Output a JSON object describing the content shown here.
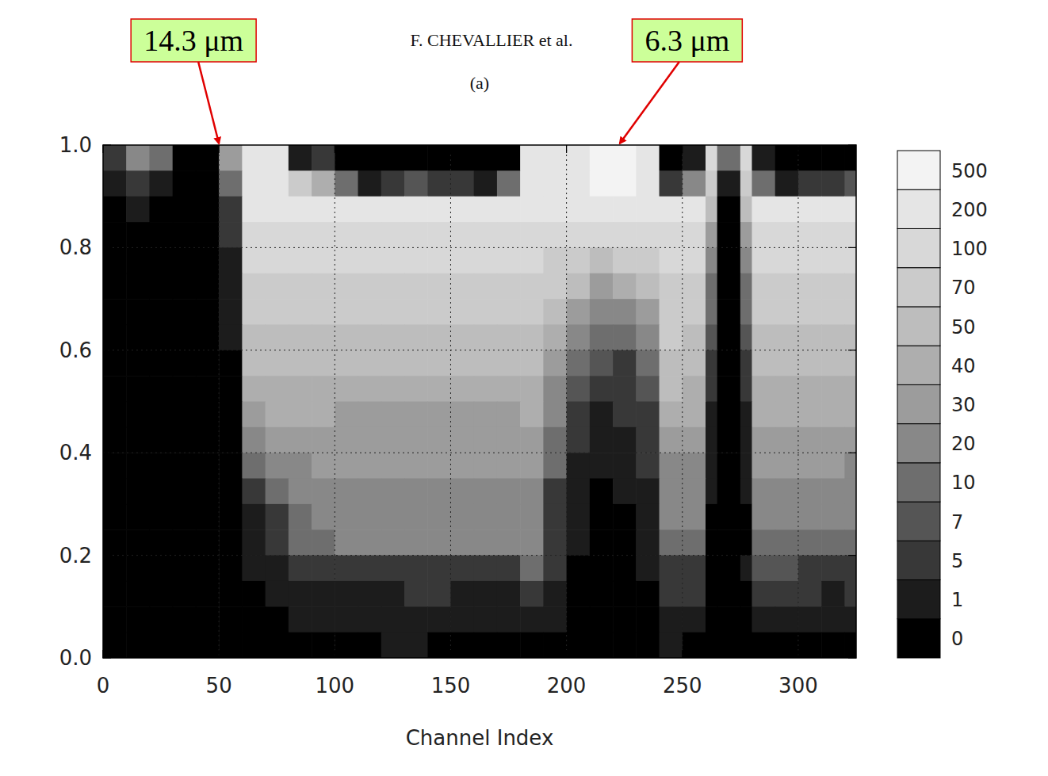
{
  "chart_data": {
    "type": "heatmap",
    "header": "F. CHEVALLIER et al.",
    "title": "(a)",
    "x_label": "Channel Index",
    "annotations": [
      {
        "text": "14.3 μm",
        "x": 50,
        "y": 1.0
      },
      {
        "text": "6.3 μm",
        "x": 223,
        "y": 1.0
      }
    ],
    "xlim": [
      0,
      325
    ],
    "xticks": [
      0,
      50,
      100,
      150,
      200,
      250,
      300
    ],
    "ylim": [
      0,
      1.0
    ],
    "yticks": [
      {
        "value": 0,
        "label": "0.0"
      },
      0.2,
      0.4,
      0.6,
      0.8,
      {
        "value": 1.0,
        "label": "1.0"
      }
    ],
    "grid": true,
    "x_edges": [
      0,
      10,
      20,
      30,
      40,
      50,
      60,
      70,
      80,
      90,
      100,
      110,
      120,
      130,
      140,
      150,
      160,
      170,
      180,
      190,
      200,
      210,
      220,
      230,
      240,
      250,
      260,
      265,
      275,
      280,
      290,
      300,
      310,
      320,
      325
    ],
    "y_edges": [
      1.0,
      0.95,
      0.9,
      0.85,
      0.8,
      0.75,
      0.7,
      0.65,
      0.6,
      0.55,
      0.5,
      0.45,
      0.4,
      0.35,
      0.3,
      0.25,
      0.2,
      0.15,
      0.1,
      0.05,
      0
    ],
    "cells": [
      [
        5,
        20,
        10,
        0,
        0,
        30,
        200,
        200,
        1,
        5,
        0,
        0,
        0,
        0,
        0,
        0,
        0,
        0,
        200,
        200,
        200,
        500,
        500,
        200,
        0,
        1,
        100,
        10,
        100,
        1,
        0,
        0,
        0,
        0
      ],
      [
        1,
        5,
        1,
        0,
        0,
        10,
        200,
        200,
        70,
        40,
        10,
        1,
        5,
        7,
        5,
        5,
        1,
        10,
        200,
        200,
        200,
        500,
        500,
        200,
        5,
        20,
        70,
        1,
        70,
        10,
        1,
        5,
        5,
        7
      ],
      [
        0,
        1,
        0,
        0,
        0,
        5,
        200,
        200,
        200,
        200,
        200,
        200,
        200,
        200,
        200,
        200,
        200,
        200,
        200,
        200,
        200,
        200,
        200,
        200,
        200,
        200,
        50,
        0,
        50,
        200,
        200,
        200,
        200,
        200
      ],
      [
        0,
        0,
        0,
        0,
        0,
        5,
        100,
        100,
        100,
        100,
        100,
        100,
        100,
        100,
        100,
        100,
        100,
        100,
        100,
        100,
        100,
        100,
        100,
        100,
        100,
        100,
        30,
        0,
        30,
        100,
        100,
        100,
        100,
        100
      ],
      [
        0,
        0,
        0,
        0,
        0,
        1,
        100,
        100,
        100,
        100,
        100,
        100,
        100,
        100,
        100,
        100,
        100,
        100,
        100,
        70,
        70,
        50,
        70,
        70,
        100,
        100,
        20,
        0,
        20,
        100,
        100,
        100,
        100,
        100
      ],
      [
        0,
        0,
        0,
        0,
        0,
        1,
        70,
        70,
        70,
        70,
        70,
        70,
        70,
        70,
        70,
        70,
        70,
        70,
        70,
        70,
        50,
        30,
        40,
        50,
        70,
        70,
        10,
        0,
        10,
        70,
        70,
        70,
        70,
        70
      ],
      [
        0,
        0,
        0,
        0,
        0,
        1,
        70,
        70,
        70,
        70,
        70,
        70,
        70,
        70,
        70,
        70,
        70,
        70,
        70,
        50,
        30,
        20,
        20,
        30,
        70,
        70,
        10,
        0,
        10,
        70,
        70,
        70,
        70,
        70
      ],
      [
        0,
        0,
        0,
        0,
        0,
        1,
        50,
        50,
        50,
        50,
        50,
        50,
        50,
        50,
        50,
        50,
        50,
        50,
        50,
        40,
        20,
        10,
        10,
        20,
        70,
        50,
        7,
        0,
        7,
        50,
        50,
        50,
        50,
        50
      ],
      [
        0,
        0,
        0,
        0,
        0,
        0,
        50,
        50,
        50,
        50,
        50,
        50,
        50,
        50,
        50,
        50,
        50,
        50,
        50,
        30,
        10,
        7,
        5,
        10,
        50,
        50,
        5,
        0,
        5,
        50,
        50,
        50,
        50,
        50
      ],
      [
        0,
        0,
        0,
        0,
        0,
        0,
        40,
        40,
        40,
        40,
        40,
        40,
        40,
        40,
        40,
        40,
        40,
        40,
        40,
        20,
        7,
        5,
        5,
        7,
        50,
        40,
        5,
        0,
        5,
        40,
        40,
        40,
        40,
        40
      ],
      [
        0,
        0,
        0,
        0,
        0,
        0,
        30,
        40,
        40,
        40,
        30,
        30,
        30,
        30,
        30,
        30,
        30,
        30,
        40,
        20,
        5,
        1,
        5,
        5,
        40,
        40,
        1,
        0,
        1,
        40,
        40,
        40,
        40,
        40
      ],
      [
        0,
        0,
        0,
        0,
        0,
        0,
        20,
        30,
        30,
        30,
        30,
        30,
        30,
        30,
        30,
        30,
        30,
        30,
        30,
        10,
        5,
        1,
        1,
        5,
        30,
        30,
        1,
        0,
        1,
        30,
        30,
        30,
        30,
        30
      ],
      [
        0,
        0,
        0,
        0,
        0,
        0,
        10,
        20,
        20,
        30,
        30,
        30,
        30,
        30,
        30,
        30,
        30,
        30,
        30,
        10,
        1,
        1,
        1,
        5,
        20,
        20,
        1,
        0,
        1,
        30,
        30,
        30,
        30,
        20
      ],
      [
        0,
        0,
        0,
        0,
        0,
        0,
        5,
        10,
        20,
        20,
        20,
        20,
        20,
        20,
        20,
        20,
        20,
        20,
        20,
        5,
        1,
        0,
        1,
        1,
        20,
        20,
        1,
        0,
        1,
        20,
        20,
        20,
        20,
        20
      ],
      [
        0,
        0,
        0,
        0,
        0,
        0,
        1,
        5,
        10,
        20,
        20,
        20,
        20,
        20,
        20,
        20,
        20,
        20,
        20,
        5,
        1,
        0,
        0,
        1,
        20,
        20,
        0,
        0,
        0,
        20,
        20,
        20,
        20,
        20
      ],
      [
        0,
        0,
        0,
        0,
        0,
        0,
        1,
        5,
        10,
        10,
        20,
        20,
        20,
        20,
        20,
        20,
        20,
        20,
        20,
        5,
        1,
        0,
        0,
        1,
        10,
        10,
        0,
        0,
        0,
        10,
        10,
        10,
        10,
        10
      ],
      [
        0,
        0,
        0,
        0,
        0,
        0,
        1,
        1,
        5,
        5,
        5,
        5,
        5,
        5,
        5,
        5,
        5,
        5,
        10,
        5,
        0,
        0,
        0,
        1,
        5,
        5,
        0,
        0,
        1,
        7,
        7,
        5,
        5,
        5
      ],
      [
        0,
        0,
        0,
        0,
        0,
        0,
        0,
        1,
        1,
        1,
        1,
        1,
        1,
        5,
        5,
        1,
        1,
        1,
        5,
        1,
        0,
        0,
        0,
        0,
        5,
        5,
        0,
        0,
        0,
        5,
        5,
        5,
        1,
        5
      ],
      [
        0,
        0,
        0,
        0,
        0,
        0,
        0,
        0,
        1,
        1,
        1,
        1,
        1,
        1,
        1,
        1,
        1,
        1,
        1,
        1,
        0,
        0,
        0,
        0,
        1,
        1,
        0,
        0,
        0,
        1,
        1,
        1,
        1,
        1
      ],
      [
        0,
        0,
        0,
        0,
        0,
        0,
        0,
        0,
        0,
        0,
        0,
        0,
        1,
        1,
        0,
        0,
        0,
        0,
        0,
        0,
        0,
        0,
        0,
        0,
        1,
        0,
        0,
        0,
        0,
        0,
        0,
        0,
        0,
        0
      ]
    ],
    "colorbar_levels": [
      0,
      1,
      5,
      7,
      10,
      20,
      30,
      40,
      50,
      70,
      100,
      200,
      500
    ],
    "colors": [
      "#000000",
      "#1c1c1c",
      "#383838",
      "#555555",
      "#6e6e6e",
      "#888888",
      "#9c9c9c",
      "#aeaeae",
      "#bdbdbd",
      "#cbcbcb",
      "#d8d8d8",
      "#e5e5e5",
      "#f3f3f3"
    ]
  }
}
